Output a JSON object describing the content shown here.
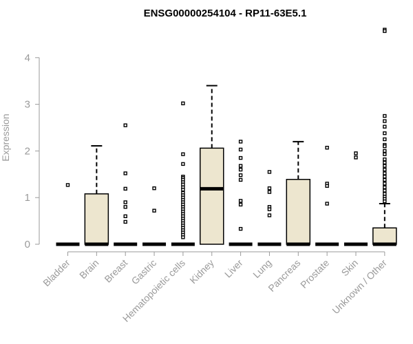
{
  "chart_data": {
    "type": "box",
    "title": "ENSG00000254104 - RP11-63E5.1",
    "xlabel": "",
    "ylabel": "Expression",
    "ylim": [
      0,
      4.6
    ],
    "yticks": [
      0,
      1,
      2,
      3,
      4
    ],
    "grid": false,
    "box_fill": "#ede6cf",
    "categories": [
      "Bladder",
      "Brain",
      "Breast",
      "Gastric",
      "Hematopoietic cells",
      "Kidney",
      "Liver",
      "Lung",
      "Pancreas",
      "Prostate",
      "Skin",
      "Unknown / Other"
    ],
    "boxes": [
      {
        "q1": 0,
        "median": 0,
        "q3": 0,
        "whisker_low": 0,
        "whisker_high": 0,
        "outliers": [
          1.27
        ]
      },
      {
        "q1": 0,
        "median": 0,
        "q3": 1.08,
        "whisker_low": 0,
        "whisker_high": 2.11,
        "outliers": []
      },
      {
        "q1": 0,
        "median": 0,
        "q3": 0,
        "whisker_low": 0,
        "whisker_high": 0,
        "outliers": [
          2.55,
          1.52,
          1.19,
          0.9,
          0.8,
          0.6,
          0.48
        ]
      },
      {
        "q1": 0,
        "median": 0,
        "q3": 0,
        "whisker_low": 0,
        "whisker_high": 0,
        "outliers": [
          1.2,
          0.72
        ]
      },
      {
        "q1": 0,
        "median": 0,
        "q3": 0,
        "whisker_low": 0,
        "whisker_high": 0,
        "outliers": [
          3.02,
          1.93,
          1.72,
          1.45,
          1.42,
          1.38,
          1.33,
          1.28,
          1.22,
          1.17,
          1.1,
          1.05,
          1.0,
          0.95,
          0.9,
          0.85,
          0.8,
          0.75,
          0.7,
          0.65,
          0.6,
          0.55,
          0.5,
          0.45,
          0.4,
          0.35,
          0.3,
          0.25,
          0.2,
          0.15
        ]
      },
      {
        "q1": 0,
        "median": 1.19,
        "q3": 2.06,
        "whisker_low": 0,
        "whisker_high": 3.4,
        "outliers": []
      },
      {
        "q1": 0,
        "median": 0,
        "q3": 0,
        "whisker_low": 0,
        "whisker_high": 0,
        "outliers": [
          2.2,
          2.03,
          1.85,
          1.68,
          1.6,
          1.48,
          1.38,
          0.93,
          0.85,
          0.33
        ]
      },
      {
        "q1": 0,
        "median": 0,
        "q3": 0,
        "whisker_low": 0,
        "whisker_high": 0,
        "outliers": [
          1.55,
          1.2,
          1.12,
          0.8,
          0.75,
          0.62
        ]
      },
      {
        "q1": 0,
        "median": 0,
        "q3": 1.39,
        "whisker_low": 0,
        "whisker_high": 2.2,
        "outliers": []
      },
      {
        "q1": 0,
        "median": 0,
        "q3": 0,
        "whisker_low": 0,
        "whisker_high": 0,
        "outliers": [
          2.07,
          1.3,
          1.25,
          0.87
        ]
      },
      {
        "q1": 0,
        "median": 0,
        "q3": 0,
        "whisker_low": 0,
        "whisker_high": 0,
        "outliers": [
          1.95,
          1.86
        ]
      },
      {
        "q1": 0,
        "median": 0,
        "q3": 0.35,
        "whisker_low": 0,
        "whisker_high": 0.87,
        "outliers": [
          4.6,
          4.57,
          2.75,
          2.64,
          2.52,
          2.38,
          2.25,
          2.13,
          2.1,
          2.0,
          1.93,
          1.82,
          1.75,
          1.68,
          1.6,
          1.52,
          1.45,
          1.38,
          1.3,
          1.22,
          1.15,
          1.08,
          1.02,
          0.97,
          0.92
        ]
      }
    ]
  }
}
